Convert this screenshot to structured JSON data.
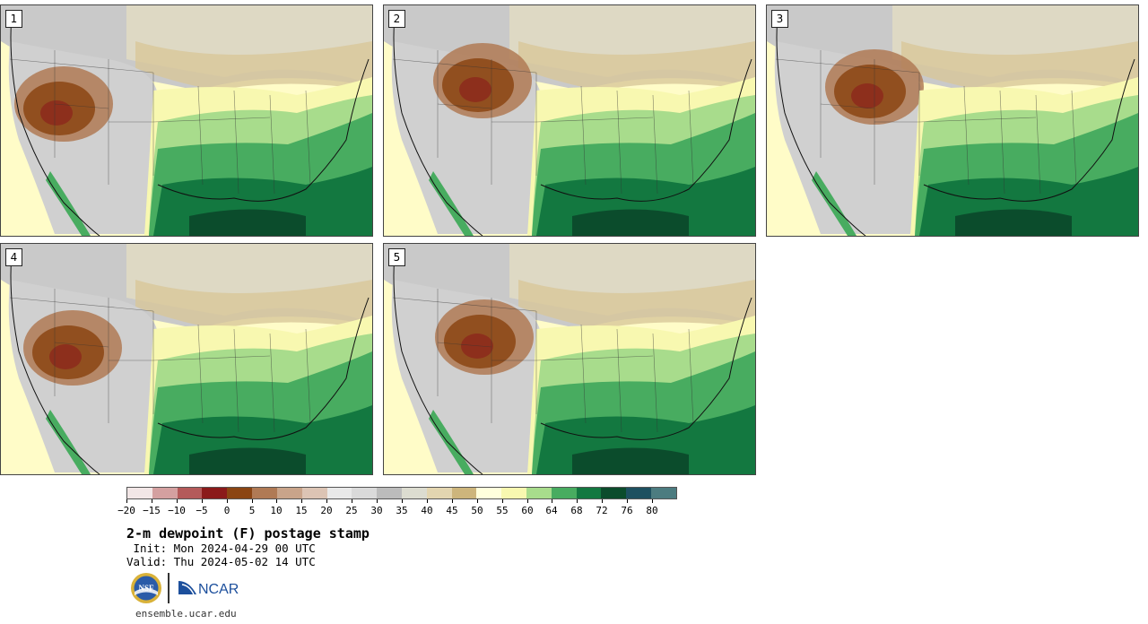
{
  "panels": [
    {
      "label": "1"
    },
    {
      "label": "2"
    },
    {
      "label": "3"
    },
    {
      "label": "4"
    },
    {
      "label": "5"
    }
  ],
  "colorbar": {
    "colors": [
      "#f2e6e6",
      "#d4a0a0",
      "#b45a5a",
      "#8b1a1a",
      "#8b4513",
      "#b07a55",
      "#c9a48a",
      "#dcc4b4",
      "#e9e9e9",
      "#dadada",
      "#bcbcbc",
      "#dcdcd0",
      "#e3d5b0",
      "#cdb57c",
      "#ffffdc",
      "#f8f8b0",
      "#a8dc8c",
      "#48ac60",
      "#137840",
      "#0b4c2c",
      "#1d5060",
      "#4c7c80"
    ],
    "tick_labels": [
      "−20",
      "−15",
      "−10",
      "−5",
      "0",
      "5",
      "10",
      "15",
      "20",
      "25",
      "30",
      "35",
      "40",
      "45",
      "50",
      "55",
      "60",
      "64",
      "68",
      "72",
      "76",
      "80"
    ]
  },
  "title": "2-m dewpoint (F) postage stamp",
  "init_line": " Init: Mon 2024-04-29 00 UTC",
  "valid_line": "Valid: Thu 2024-05-02 14 UTC",
  "logos": {
    "nsf_text": "NSF",
    "ncar_text": "NCAR"
  },
  "site": "ensemble.ucar.edu"
}
